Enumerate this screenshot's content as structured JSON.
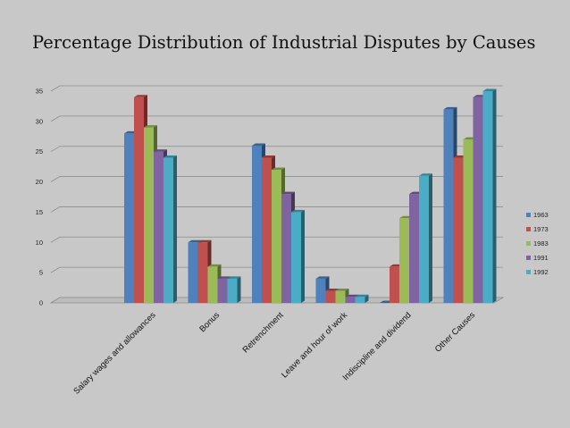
{
  "chart_data": {
    "type": "bar",
    "title": "Percentage Distribution of Industrial Disputes by Causes",
    "xlabel": "",
    "ylabel": "",
    "ylim": [
      0,
      35
    ],
    "yticks": [
      0,
      5,
      10,
      15,
      20,
      25,
      30,
      35
    ],
    "grid": true,
    "legend_position": "right",
    "categories": [
      "Salary wages and allowances",
      "Bonus",
      "Retrenchment",
      "Leave and hour of work",
      "Indiscipline and dividend",
      "Other Causes"
    ],
    "series": [
      {
        "name": "1963",
        "color": "#4f81bd",
        "values": [
          28,
          10,
          26,
          4,
          0,
          32
        ]
      },
      {
        "name": "1973",
        "color": "#c0504d",
        "values": [
          34,
          10,
          24,
          2,
          6,
          24
        ]
      },
      {
        "name": "1983",
        "color": "#9bbb59",
        "values": [
          29,
          6,
          22,
          2,
          14,
          27
        ]
      },
      {
        "name": "1991",
        "color": "#8064a2",
        "values": [
          25,
          4,
          18,
          1,
          18,
          34
        ]
      },
      {
        "name": "1992",
        "color": "#4bacc6",
        "values": [
          24,
          4,
          15,
          1,
          21,
          35
        ]
      }
    ]
  }
}
